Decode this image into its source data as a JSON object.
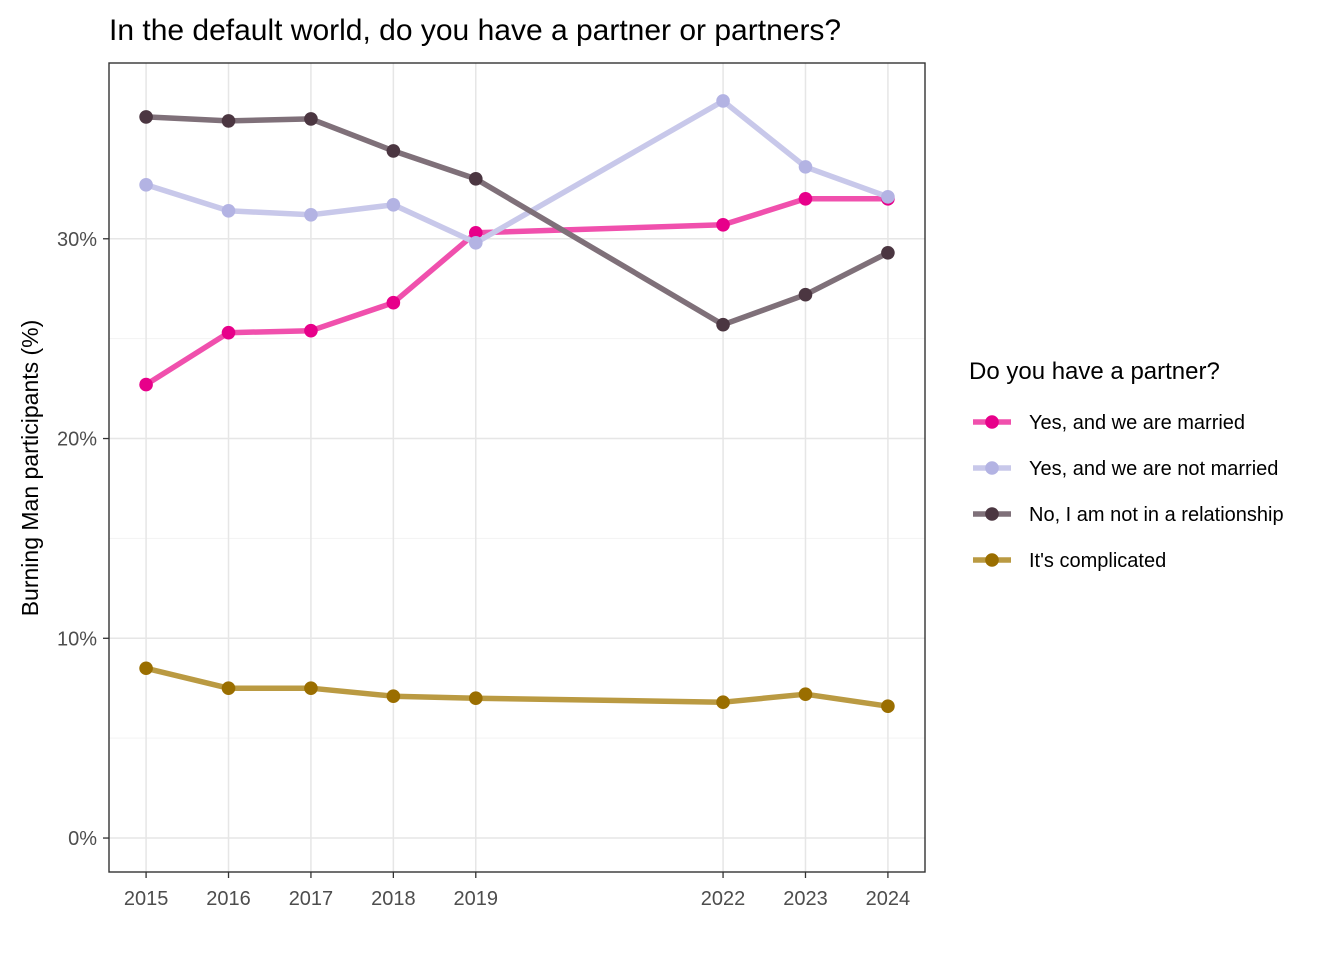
{
  "chart_data": {
    "type": "line",
    "title": "In the default world, do you have a partner or partners?",
    "xlabel": "",
    "ylabel": "Burning Man participants (%)",
    "x": [
      2015,
      2016,
      2017,
      2018,
      2019,
      2022,
      2023,
      2024
    ],
    "xlim": [
      2014.55,
      2024.45
    ],
    "ylim": [
      -1.7,
      38.8
    ],
    "yticks": [
      0,
      10,
      20,
      30
    ],
    "ytick_labels": [
      "0%",
      "10%",
      "20%",
      "30%"
    ],
    "grid": true,
    "legend": {
      "title": "Do you have a partner?",
      "position": "right"
    },
    "series": [
      {
        "name": "Yes, and we are married",
        "color": "#e7008a",
        "line_color": "#f050ad",
        "values": [
          22.7,
          25.3,
          25.4,
          26.8,
          30.3,
          30.7,
          32.0,
          32.0
        ]
      },
      {
        "name": "Yes, and we are not married",
        "color": "#b3b3e3",
        "line_color": "#c8c8ea",
        "values": [
          32.7,
          31.4,
          31.2,
          31.7,
          29.8,
          36.9,
          33.6,
          32.1
        ]
      },
      {
        "name": "No, I am not in a relationship",
        "color": "#4b3641",
        "line_color": "#7f7079",
        "values": [
          36.1,
          35.9,
          36.0,
          34.4,
          33.0,
          25.7,
          27.2,
          29.3
        ]
      },
      {
        "name": "It's complicated",
        "color": "#9a6e00",
        "line_color": "#ba9a42",
        "values": [
          8.5,
          7.5,
          7.5,
          7.1,
          7.0,
          6.8,
          7.2,
          6.6
        ]
      }
    ]
  }
}
